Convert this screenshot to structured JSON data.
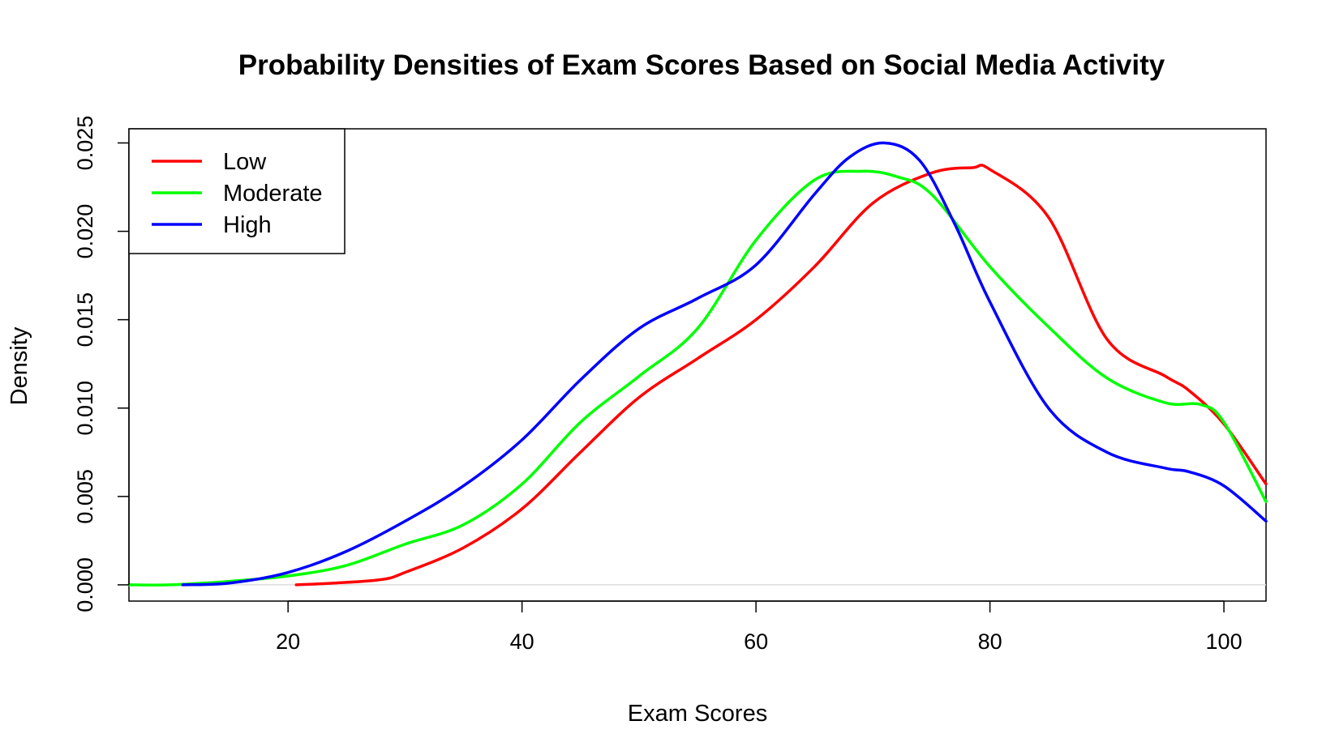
{
  "chart_data": {
    "type": "line",
    "title": "Probability Densities of Exam Scores Based on Social Media Activity",
    "xlabel": "Exam Scores",
    "ylabel": "Density",
    "xlim": [
      6.4,
      103.6
    ],
    "ylim": [
      -0.00092,
      0.0258
    ],
    "x_ticks": [
      20,
      40,
      60,
      80,
      100
    ],
    "x_tick_labels": [
      "20",
      "40",
      "60",
      "80",
      "100"
    ],
    "y_ticks": [
      0.0,
      0.005,
      0.01,
      0.015,
      0.02,
      0.025
    ],
    "y_tick_labels": [
      "0.000",
      "0.005",
      "0.010",
      "0.015",
      "0.020",
      "0.025"
    ],
    "grid": false,
    "baseline": {
      "y": 0,
      "color": "#dddddd"
    },
    "legend": {
      "position": "top-left",
      "entries": [
        {
          "label": "Low",
          "color": "#ff0000"
        },
        {
          "label": "Moderate",
          "color": "#00ff00"
        },
        {
          "label": "High",
          "color": "#0000ff"
        }
      ]
    },
    "series": [
      {
        "name": "Low",
        "color": "#ff0000",
        "x": [
          20.7,
          24,
          28,
          30,
          35,
          40,
          45,
          50,
          55,
          60,
          65,
          70,
          75,
          78.5,
          80,
          85,
          90,
          95,
          97,
          100,
          103.6
        ],
        "y": [
          0.0,
          0.0001,
          0.0003,
          0.0007,
          0.0021,
          0.0043,
          0.0075,
          0.0106,
          0.0128,
          0.015,
          0.018,
          0.0216,
          0.0233,
          0.0236,
          0.0235,
          0.0208,
          0.0139,
          0.0118,
          0.011,
          0.0091,
          0.0057
        ]
      },
      {
        "name": "Moderate",
        "color": "#00ff00",
        "x": [
          6.4,
          10,
          15,
          20,
          25,
          30,
          35,
          40,
          45,
          50,
          55,
          60,
          65,
          69,
          72,
          75,
          80,
          85,
          90,
          95,
          98,
          100,
          103.6
        ],
        "y": [
          0.0,
          0.0,
          0.0002,
          0.0005,
          0.0011,
          0.0023,
          0.0034,
          0.0057,
          0.0092,
          0.0118,
          0.0145,
          0.0195,
          0.0229,
          0.0234,
          0.0231,
          0.0221,
          0.018,
          0.0146,
          0.0117,
          0.0103,
          0.0102,
          0.0092,
          0.0047
        ]
      },
      {
        "name": "High",
        "color": "#0000ff",
        "x": [
          11,
          15,
          20,
          25,
          30,
          35,
          40,
          45,
          50,
          55,
          60,
          65,
          68,
          71,
          74,
          77,
          80,
          85,
          90,
          95,
          97,
          100,
          103.6
        ],
        "y": [
          0.0,
          0.0001,
          0.0007,
          0.0019,
          0.0036,
          0.0056,
          0.0082,
          0.0116,
          0.0145,
          0.0162,
          0.0181,
          0.0221,
          0.0242,
          0.025,
          0.024,
          0.0204,
          0.016,
          0.01,
          0.0075,
          0.0066,
          0.0064,
          0.0056,
          0.0036
        ]
      }
    ]
  }
}
